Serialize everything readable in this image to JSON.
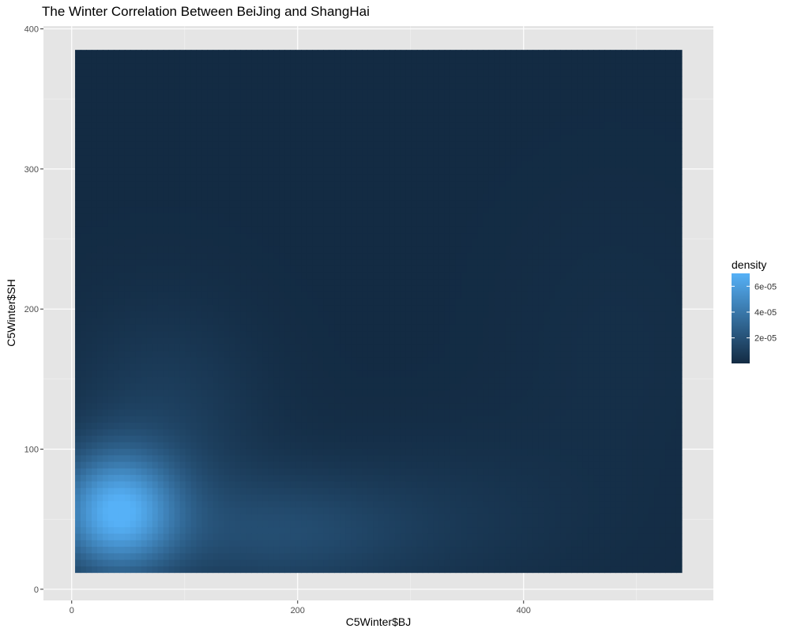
{
  "chart_data": {
    "type": "heatmap",
    "title": "The Winter Correlation Between BeiJing and ShangHai",
    "xlabel": "C5Winter$BJ",
    "ylabel": "C5Winter$SH",
    "xlim": [
      -25,
      568
    ],
    "ylim": [
      -8,
      402
    ],
    "x_ticks": [
      0,
      200,
      400
    ],
    "x_minor_ticks": [
      100,
      300,
      500
    ],
    "y_ticks": [
      0,
      100,
      200,
      300,
      400
    ],
    "y_minor_ticks": [
      50,
      150,
      250,
      350
    ],
    "grid": true,
    "raster_extent": {
      "x": [
        3,
        540
      ],
      "y": [
        12,
        385
      ]
    },
    "density_range": [
      2e-07,
      7e-05
    ],
    "density_peaks": [
      {
        "x": 40,
        "y": 55,
        "density": 6.5e-05
      },
      {
        "x": 180,
        "y": 40,
        "density": 1.6e-05
      },
      {
        "x": 80,
        "y": 120,
        "density": 1e-05
      },
      {
        "x": 330,
        "y": 50,
        "density": 5e-06
      },
      {
        "x": 480,
        "y": 170,
        "density": 2e-06
      }
    ],
    "legend": {
      "title": "density",
      "placement": "right",
      "color_low": "#132B43",
      "color_high": "#56B1F7",
      "ticks": [
        {
          "label": "6e-05",
          "value": 6e-05
        },
        {
          "label": "4e-05",
          "value": 4e-05
        },
        {
          "label": "2e-05",
          "value": 2e-05
        }
      ]
    },
    "colors": {
      "panel_background": "#E5E5E5",
      "grid_major": "#FFFFFF",
      "grid_minor": "#F2F2F2",
      "tick_text": "#4D4D4D",
      "axis_title": "#000000"
    }
  }
}
